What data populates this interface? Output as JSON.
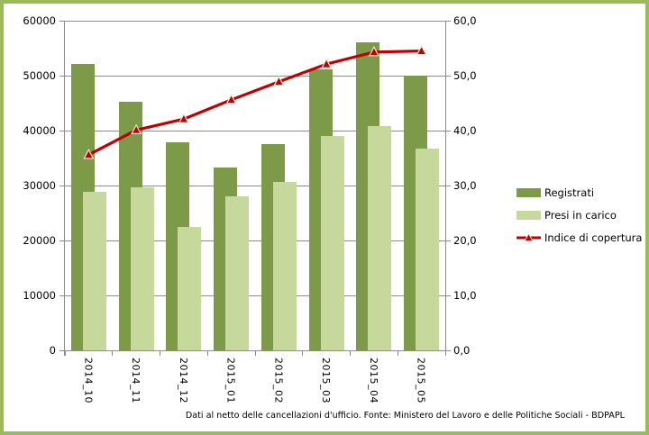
{
  "chart_data": {
    "type": "bar",
    "subtype": "dual-axis-bar-line",
    "categories": [
      "2014_10",
      "2014_11",
      "2014_12",
      "2015_01",
      "2015_02",
      "2015_03",
      "2015_04",
      "2015_05"
    ],
    "series": [
      {
        "name": "Registrati",
        "type": "bar",
        "axis": "left",
        "color": "#7D9A49",
        "values": [
          52200,
          45200,
          37800,
          33300,
          37600,
          51100,
          56000,
          50000
        ]
      },
      {
        "name": "Presi in carico",
        "type": "bar",
        "axis": "left",
        "color": "#C6D89C",
        "values": [
          28800,
          29600,
          22500,
          28000,
          30600,
          39000,
          40800,
          36800
        ]
      },
      {
        "name": "Indice di copertura",
        "type": "line",
        "axis": "right",
        "color": "#C00000",
        "marker": "triangle",
        "marker_outline": "#EDE7D2",
        "values": [
          35.6,
          40.1,
          42.1,
          45.6,
          48.9,
          52.1,
          54.3,
          54.5
        ]
      }
    ],
    "left_axis": {
      "min": 0,
      "max": 60000,
      "step": 10000,
      "tick_labels": [
        "0",
        "10000",
        "20000",
        "30000",
        "40000",
        "50000",
        "60000"
      ]
    },
    "right_axis": {
      "min": 0,
      "max": 60,
      "step": 10,
      "tick_labels": [
        "0,0",
        "10,0",
        "20,0",
        "30,0",
        "40,0",
        "50,0",
        "60,0"
      ]
    },
    "grid": true,
    "legend_position": "right",
    "title": "",
    "xlabel": "",
    "ylabel": ""
  },
  "colors": {
    "frame_border": "#9BBA58",
    "gridline": "#8C8C8C",
    "axis_text": "#000000"
  },
  "footer": {
    "note": "Dati al netto delle cancellazioni d'ufficio. Fonte: Ministero del Lavoro e delle Politiche Sociali - BDPAPL"
  }
}
